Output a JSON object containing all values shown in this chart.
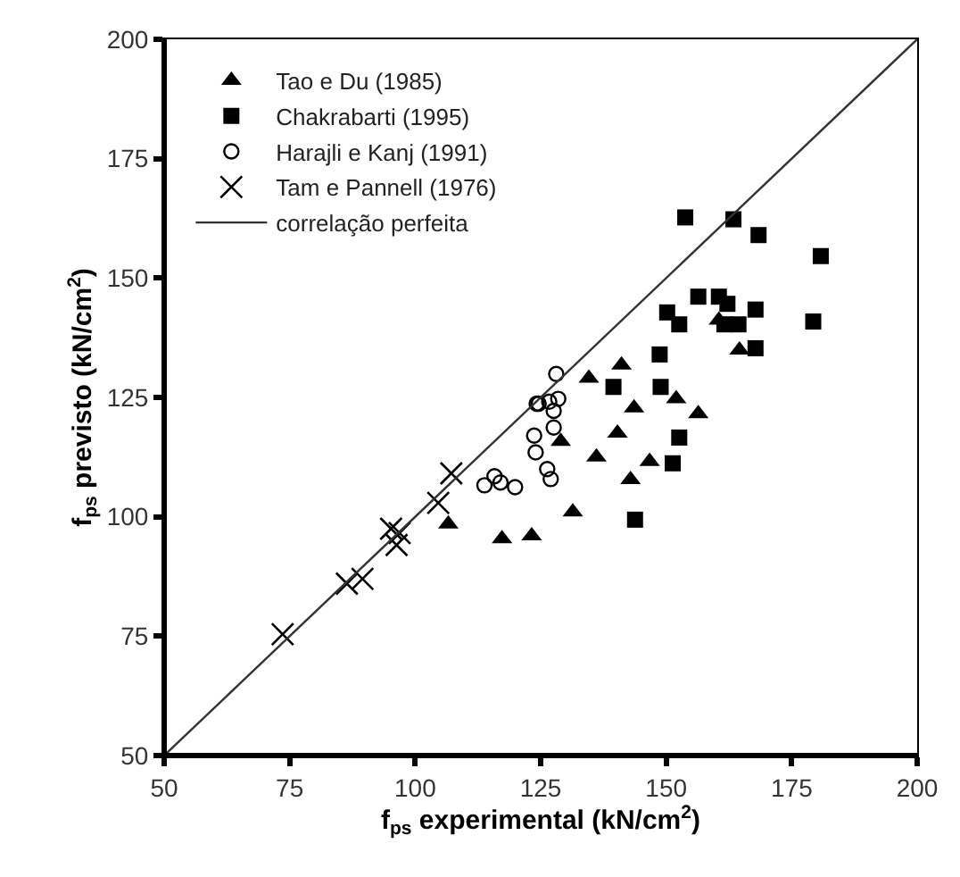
{
  "chart_data": {
    "type": "scatter",
    "xlabel": "f$_{ps}$ experimental (kN/cm$^{2}$)",
    "ylabel": "f$_{ps}$ previsto (kN/cm$^{2}$)",
    "xlim": [
      50,
      200
    ],
    "ylim": [
      50,
      200
    ],
    "xticks": [
      50,
      75,
      100,
      125,
      150,
      175,
      200
    ],
    "yticks": [
      50,
      75,
      100,
      125,
      150,
      175,
      200
    ],
    "legend": "top left",
    "series": [
      {
        "name": "Tao e Du (1985)",
        "color": "#000000",
        "marker": "triangle",
        "x": [
          106.6,
          117.3,
          123.2,
          131.4,
          129.0,
          136.1,
          140.3,
          146.7,
          142.9,
          143.6,
          134.6,
          141.1,
          152.0,
          156.4,
          164.6,
          160.5
        ],
        "values": [
          98.5,
          95.4,
          96.0,
          101.0,
          115.8,
          112.5,
          117.5,
          111.6,
          107.8,
          122.8,
          129.0,
          131.8,
          124.7,
          121.6,
          134.9,
          141.2
        ]
      },
      {
        "name": "Chakrabarti (1995)",
        "color": "#000000",
        "marker": "square",
        "x": [
          153.8,
          163.4,
          168.4,
          180.8,
          156.4,
          160.5,
          162.2,
          150.2,
          152.6,
          167.8,
          161.6,
          164.4,
          179.3,
          148.7,
          167.8,
          139.5,
          148.9,
          152.6,
          151.3,
          143.8
        ],
        "values": [
          162.7,
          162.3,
          159.0,
          154.6,
          146.1,
          146.1,
          144.6,
          142.8,
          140.3,
          143.4,
          140.3,
          140.3,
          140.9,
          134.0,
          135.3,
          127.2,
          127.2,
          116.6,
          111.2,
          99.4
        ]
      },
      {
        "name": "Harajli e Kanj (1991)",
        "color": "#000000",
        "marker": "circle-open",
        "x": [
          124.2,
          128.1,
          124.6,
          126.7,
          128.5,
          127.6,
          127.6,
          123.7,
          124.0,
          126.3,
          127.0,
          119.9,
          117.0,
          113.8,
          115.8
        ],
        "values": [
          123.7,
          129.9,
          123.7,
          124.1,
          124.7,
          122.2,
          118.7,
          117.0,
          113.5,
          110.0,
          107.9,
          106.2,
          107.2,
          106.6,
          108.5
        ]
      },
      {
        "name": "Tam e Pannell (1976)",
        "color": "#000000",
        "marker": "cross",
        "x": [
          73.6,
          86.4,
          89.5,
          95.2,
          96.9,
          96.3,
          104.6,
          107.2
        ],
        "values": [
          75.4,
          86.0,
          87.0,
          97.5,
          96.6,
          94.1,
          102.9,
          109.1
        ]
      },
      {
        "name": "correlação perfeita",
        "color": "#333333",
        "type": "line",
        "marker": "none",
        "x": [
          50,
          200
        ],
        "values": [
          50,
          200
        ]
      }
    ]
  }
}
